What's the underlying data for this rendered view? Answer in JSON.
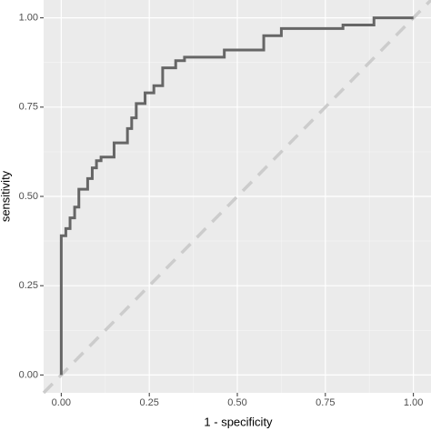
{
  "chart_data": {
    "type": "line",
    "x_label": "1 - specificity",
    "y_label": "sensitivity",
    "x": [
      0,
      0,
      0.013,
      0.013,
      0.025,
      0.025,
      0.038,
      0.038,
      0.05,
      0.05,
      0.075,
      0.075,
      0.088,
      0.088,
      0.1,
      0.1,
      0.113,
      0.113,
      0.15,
      0.15,
      0.188,
      0.188,
      0.2,
      0.2,
      0.213,
      0.213,
      0.238,
      0.238,
      0.263,
      0.263,
      0.288,
      0.288,
      0.325,
      0.325,
      0.35,
      0.35,
      0.463,
      0.463,
      0.575,
      0.575,
      0.625,
      0.625,
      0.8,
      0.8,
      0.888,
      0.888,
      1.0
    ],
    "series": [
      {
        "color": "#666666",
        "values": [
          0,
          0.39,
          0.39,
          0.41,
          0.41,
          0.44,
          0.44,
          0.47,
          0.47,
          0.52,
          0.52,
          0.55,
          0.55,
          0.58,
          0.58,
          0.6,
          0.6,
          0.61,
          0.61,
          0.65,
          0.65,
          0.69,
          0.69,
          0.72,
          0.72,
          0.76,
          0.76,
          0.79,
          0.79,
          0.81,
          0.81,
          0.86,
          0.86,
          0.88,
          0.88,
          0.89,
          0.89,
          0.91,
          0.91,
          0.95,
          0.95,
          0.97,
          0.97,
          0.98,
          0.98,
          1.0,
          1.0
        ]
      }
    ],
    "diagonal": true,
    "diagonal_color": "#cccccc",
    "xlim": [
      -0.05,
      1.05
    ],
    "ylim": [
      -0.05,
      1.05
    ],
    "xticks": [
      {
        "value": 0,
        "label": "0.00"
      },
      {
        "value": 0.25,
        "label": "0.25"
      },
      {
        "value": 0.5,
        "label": "0.50"
      },
      {
        "value": 0.75,
        "label": "0.75"
      },
      {
        "value": 1,
        "label": "1.00"
      }
    ],
    "yticks": [
      {
        "value": 0,
        "label": "0.00"
      },
      {
        "value": 0.25,
        "label": "0.25"
      },
      {
        "value": 0.5,
        "label": "0.50"
      },
      {
        "value": 0.75,
        "label": "0.75"
      },
      {
        "value": 1,
        "label": "1.00"
      }
    ],
    "grid": true
  }
}
